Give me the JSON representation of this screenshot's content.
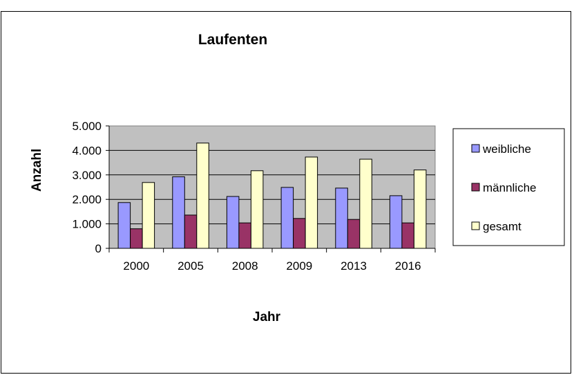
{
  "chart_data": {
    "type": "bar",
    "title": "Laufenten",
    "xlabel": "Jahr",
    "ylabel": "Anzahl",
    "categories": [
      "2000",
      "2005",
      "2008",
      "2009",
      "2013",
      "2016"
    ],
    "series": [
      {
        "name": "weibliche",
        "values": [
          1870,
          2920,
          2120,
          2490,
          2460,
          2150
        ],
        "color": "#9999ff"
      },
      {
        "name": "männliche",
        "values": [
          800,
          1360,
          1040,
          1220,
          1180,
          1040
        ],
        "color": "#993366"
      },
      {
        "name": "gesamt",
        "values": [
          2690,
          4300,
          3170,
          3730,
          3640,
          3200
        ],
        "color": "#ffffcc"
      }
    ],
    "ylim": [
      0,
      5000
    ],
    "yticks": [
      0,
      1000,
      2000,
      3000,
      4000,
      5000
    ],
    "ytick_labels": [
      "0",
      "1.000",
      "2.000",
      "3.000",
      "4.000",
      "5.000"
    ],
    "plot_background": "#c0c0c0",
    "grid": true,
    "legend_position": "right"
  }
}
